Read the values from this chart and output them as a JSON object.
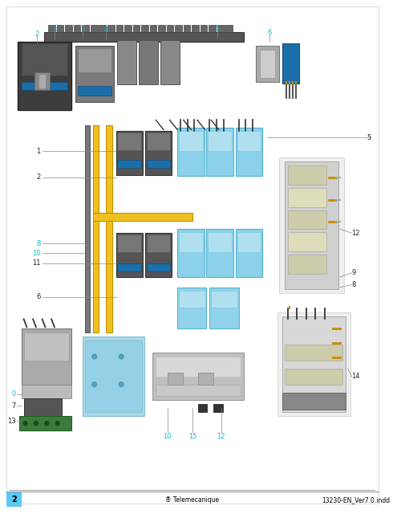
{
  "page_bg": "#ffffff",
  "border_color": "#cccccc",
  "footer_line_color": "#999999",
  "footer_bg": "#5bc8f5",
  "footer_text_color": "#000000",
  "footer_page_num": "2",
  "footer_brand": "Telemecanique",
  "footer_doc": "13230-EN_Ver7.0.indd",
  "footer_fontsize": 7,
  "figsize": [
    4.95,
    6.4
  ],
  "dpi": 100,
  "diagram_bg": "#ffffff",
  "label_color_cyan": "#00aadd",
  "label_color_black": "#222222",
  "label_fontsize": 6,
  "callout_line_color": "#888888",
  "rail_yellow": "#f0c020",
  "rail_dark": "#444444",
  "component_blue_light": "#7ec8e3",
  "component_blue_dark": "#1a6fa8",
  "component_gray": "#888888",
  "component_gray_light": "#cccccc",
  "component_dark": "#333333",
  "component_green": "#3a7a3a",
  "annotation_cyan": "#00bcd4"
}
